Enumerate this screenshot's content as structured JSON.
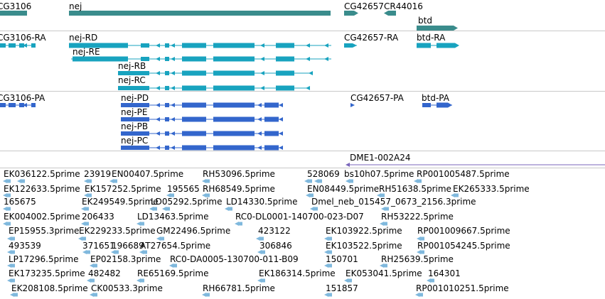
{
  "colors": {
    "gene": "#3a8c8c",
    "transcript_rna": "#18a3bf",
    "transcript_pa": "#3366cc",
    "feature_purple": "#7a66bb",
    "est": "#7fb8dd",
    "divider": "#c8c8c8"
  },
  "genes": [
    {
      "name": "CG3106"
    },
    {
      "name": "nej"
    },
    {
      "name": "CG42657"
    },
    {
      "name": "CR44016"
    },
    {
      "name": "btd"
    }
  ],
  "rna_transcripts": [
    {
      "name": "CG3106-RA"
    },
    {
      "name": "nej-RD"
    },
    {
      "name": "nej-RE"
    },
    {
      "name": "nej-RB"
    },
    {
      "name": "nej-RC"
    },
    {
      "name": "CG42657-RA"
    },
    {
      "name": "btd-RA"
    }
  ],
  "protein_transcripts": [
    {
      "name": "CG3106-PA"
    },
    {
      "name": "nej-PD"
    },
    {
      "name": "nej-PE"
    },
    {
      "name": "nej-PB"
    },
    {
      "name": "nej-PC"
    },
    {
      "name": "CG42657-PA"
    },
    {
      "name": "btd-PA"
    }
  ],
  "features": [
    {
      "name": "DME1-002A24"
    }
  ],
  "est_rows": [
    [
      "EK036122.5prime",
      "23919",
      "EN00407.5prime",
      "RH53096.5prime",
      "528069",
      "bs10h07.5prime",
      "RP001005487.5prime"
    ],
    [
      "EK122633.5prime",
      "EK157252.5prime",
      "195565",
      "RH68549.5prime",
      "EN08449.5prime",
      "RH51638.5prime",
      "EK265333.5prime"
    ],
    [
      "165675",
      "EK249549.5prime",
      "LD05292.5prime",
      "LD14330.5prime",
      "Dmel_neb_015457_0673_2156.3prime"
    ],
    [
      "EK004002.5prime",
      "206433",
      "LD13463.5prime",
      "RC0-DL0001-140700-023-D07",
      "RH53222.5prime"
    ],
    [
      "EP15955.3prime",
      "EK229233.5prime",
      "GM22496.5prime",
      "423122",
      "EK103922.5prime",
      "RP001009667.5prime"
    ],
    [
      "493539",
      "371651",
      "196689",
      "AT27654.5prime",
      "306846",
      "EK103522.5prime",
      "RP001054245.5prime"
    ],
    [
      "LP17296.5prime",
      "EP02158.3prime",
      "RC0-DA0005-130700-011-B09",
      "150701",
      "RH25639.5prime"
    ],
    [
      "EK173235.5prime",
      "482482",
      "RE65169.5prime",
      "EK186314.5prime",
      "EK053041.5prime",
      "164301"
    ],
    [
      "EK208108.5prime",
      "CK00533.3prime",
      "RH66781.5prime",
      "151857",
      "RP001010251.5prime"
    ]
  ]
}
